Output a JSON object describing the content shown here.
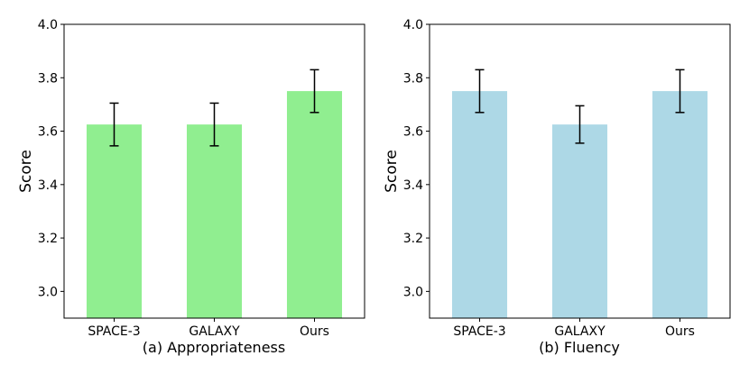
{
  "chart_data": [
    {
      "type": "bar",
      "title": "(a) Appropriateness",
      "xlabel": "",
      "ylabel": "Score",
      "categories": [
        "SPACE-3",
        "GALAXY",
        "Ours"
      ],
      "values": [
        3.625,
        3.625,
        3.75
      ],
      "errors": [
        0.08,
        0.08,
        0.08
      ],
      "ylim": [
        2.9,
        4.0
      ],
      "yticks": [
        3.0,
        3.2,
        3.4,
        3.6,
        3.8,
        4.0
      ],
      "ytick_labels": [
        "3.0",
        "3.2",
        "3.4",
        "3.6",
        "3.8",
        "4.0"
      ],
      "bar_color": "#90ee90",
      "grid": false
    },
    {
      "type": "bar",
      "title": "(b) Fluency",
      "xlabel": "",
      "ylabel": "Score",
      "categories": [
        "SPACE-3",
        "GALAXY",
        "Ours"
      ],
      "values": [
        3.75,
        3.625,
        3.75
      ],
      "errors": [
        0.08,
        0.07,
        0.08
      ],
      "ylim": [
        2.9,
        4.0
      ],
      "yticks": [
        3.0,
        3.2,
        3.4,
        3.6,
        3.8,
        4.0
      ],
      "ytick_labels": [
        "3.0",
        "3.2",
        "3.4",
        "3.6",
        "3.8",
        "4.0"
      ],
      "bar_color": "#add8e6",
      "grid": false
    }
  ]
}
